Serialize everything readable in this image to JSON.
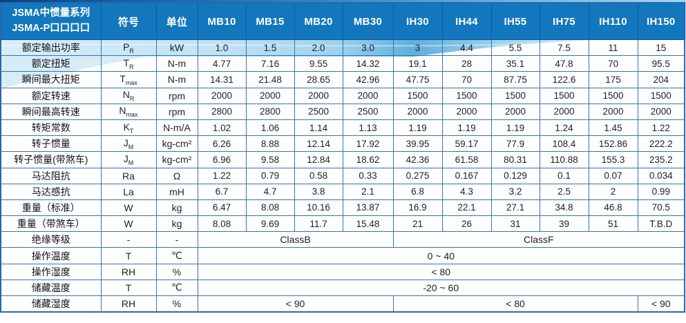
{
  "table": {
    "header": {
      "title_line1": "JSMA中惯量系列",
      "title_line2": "JSMA-P口口口口",
      "symbol": "符号",
      "unit": "单位",
      "models": [
        "MB10",
        "MB15",
        "MB20",
        "MB30",
        "IH30",
        "IH44",
        "IH55",
        "IH75",
        "IH110",
        "IH150"
      ]
    },
    "rows": [
      {
        "label": "额定输出功率",
        "symbol": "P",
        "sub": "R",
        "unit": "kW",
        "values": [
          "1.0",
          "1.5",
          "2.0",
          "3.0",
          "3",
          "4.4",
          "5.5",
          "7.5",
          "11",
          "15"
        ]
      },
      {
        "label": "额定扭矩",
        "symbol": "T",
        "sub": "R",
        "unit": "N-m",
        "values": [
          "4.77",
          "7.16",
          "9.55",
          "14.32",
          "19.1",
          "28",
          "35.1",
          "47.8",
          "70",
          "95.5"
        ]
      },
      {
        "label": "瞬间最大扭矩",
        "symbol": "T",
        "sub": "max",
        "unit": "N-m",
        "values": [
          "14.31",
          "21.48",
          "28.65",
          "42.96",
          "47.75",
          "70",
          "87.75",
          "122.6",
          "175",
          "204"
        ]
      },
      {
        "label": "额定转速",
        "symbol": "N",
        "sub": "R",
        "unit": "rpm",
        "values": [
          "2000",
          "2000",
          "2000",
          "2000",
          "1500",
          "1500",
          "1500",
          "1500",
          "1500",
          "1500"
        ]
      },
      {
        "label": "瞬间最高转速",
        "symbol": "N",
        "sub": "max",
        "unit": "rpm",
        "values": [
          "2800",
          "2800",
          "2500",
          "2500",
          "2000",
          "2000",
          "2000",
          "2000",
          "2000",
          "2000"
        ]
      },
      {
        "label": "转矩常数",
        "symbol": "K",
        "sub": "T",
        "unit": "N-m/A",
        "values": [
          "1.02",
          "1.06",
          "1.14",
          "1.13",
          "1.19",
          "1.19",
          "1.19",
          "1.24",
          "1.45",
          "1.22"
        ]
      },
      {
        "label": "转子惯量",
        "symbol": "J",
        "sub": "M",
        "unit": "kg-cm²",
        "values": [
          "6.26",
          "8.88",
          "12.14",
          "17.92",
          "39.95",
          "59.17",
          "77.9",
          "108.4",
          "152.86",
          "222.2"
        ]
      },
      {
        "label": "转子惯量(带煞车)",
        "symbol": "J",
        "sub": "M",
        "unit": "kg-cm²",
        "values": [
          "6.96",
          "9.58",
          "12.84",
          "18.62",
          "42.36",
          "61.58",
          "80.31",
          "110.88",
          "155.3",
          "235.2"
        ]
      },
      {
        "label": "马达阻抗",
        "symbol": "Ra",
        "unit": "Ω",
        "values": [
          "1.22",
          "0.79",
          "0.58",
          "0.33",
          "0.275",
          "0.167",
          "0.129",
          "0.1",
          "0.07",
          "0.034"
        ]
      },
      {
        "label": "马达感抗",
        "symbol": "La",
        "unit": "mH",
        "values": [
          "6.7",
          "4.7",
          "3.8",
          "2.1",
          "6.8",
          "4.3",
          "3.2",
          "2.5",
          "2",
          "0.99"
        ]
      },
      {
        "label": "重量（标准）",
        "symbol": "W",
        "unit": "kg",
        "values": [
          "6.47",
          "8.08",
          "10.16",
          "13.87",
          "16.9",
          "22.1",
          "27.1",
          "34.8",
          "46.8",
          "70.5"
        ]
      },
      {
        "label": "重量（带煞车）",
        "symbol": "W",
        "unit": "kg",
        "values": [
          "8.08",
          "9.69",
          "11.7",
          "15.48",
          "21",
          "26",
          "31",
          "39",
          "51",
          "T.B.D"
        ]
      },
      {
        "label": "绝缘等级",
        "symbol": "-",
        "unit": "-",
        "spans": [
          {
            "text": "ClassB",
            "cols": 4
          },
          {
            "text": "ClassF",
            "cols": 6
          }
        ]
      },
      {
        "label": "操作温度",
        "symbol": "T",
        "unit": "℃",
        "spans": [
          {
            "text": "0 ~ 40",
            "cols": 10
          }
        ]
      },
      {
        "label": "操作湿度",
        "symbol": "RH",
        "unit": "%",
        "spans": [
          {
            "text": "< 80",
            "cols": 10
          }
        ]
      },
      {
        "label": "储藏温度",
        "symbol": "T",
        "unit": "℃",
        "spans": [
          {
            "text": "-20 ~ 60",
            "cols": 10
          }
        ]
      },
      {
        "label": "储藏湿度",
        "symbol": "RH",
        "unit": "%",
        "spans": [
          {
            "text": "< 90",
            "cols": 4
          },
          {
            "text": "< 80",
            "cols": 5
          },
          {
            "text": "< 90",
            "cols": 1
          }
        ]
      }
    ]
  },
  "colors": {
    "header_bg": "#1377BD",
    "header_border": "#0D5BA6",
    "grid_border": "#2E74B5",
    "value_text": "#202020",
    "wave_dark": "#0A4186",
    "wave_mid": "#2B86C6",
    "wave_light": "#A6D6EF",
    "ribbon_pale": "#D8EDF8",
    "ribbon_deep": "#5FAFDC"
  }
}
